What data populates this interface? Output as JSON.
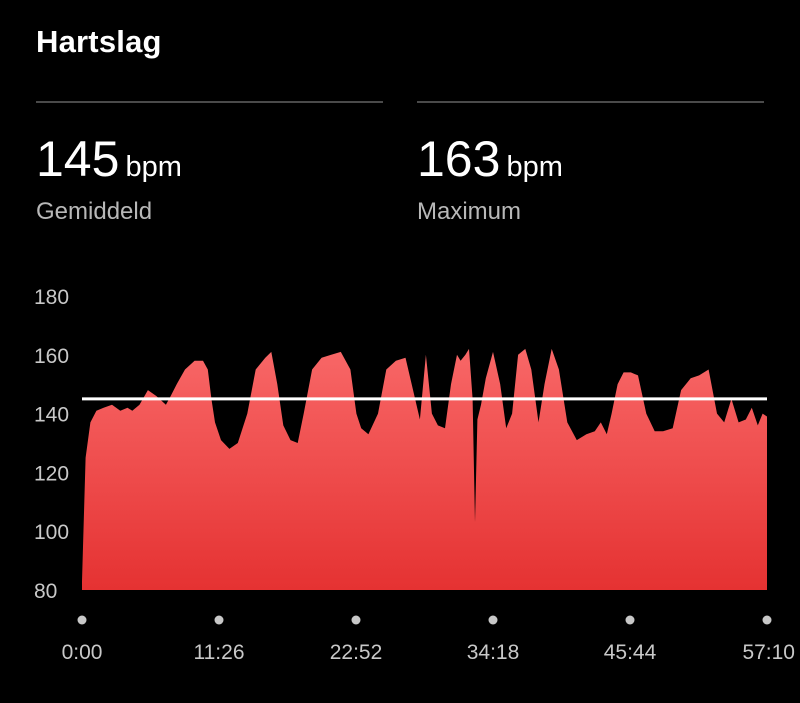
{
  "header": {
    "title": "Hartslag"
  },
  "stats": [
    {
      "value": "145",
      "unit": "bpm",
      "label": "Gemiddeld"
    },
    {
      "value": "163",
      "unit": "bpm",
      "label": "Maximum"
    }
  ],
  "colors": {
    "fill_top": "#f86767",
    "fill_bottom": "#e53232",
    "average_line": "#ffffff",
    "text_secondary": "#b8b8b8"
  },
  "chart_data": {
    "type": "area",
    "ylim": [
      80,
      180
    ],
    "y_ticks": [
      "180",
      "160",
      "140",
      "120",
      "100",
      "80"
    ],
    "x_range_minutes": [
      0,
      57.17
    ],
    "x_ticks": [
      "0:00",
      "11:26",
      "22:52",
      "34:18",
      "45:44",
      "57:10"
    ],
    "average_line": 145,
    "series": [
      {
        "x": [
          0,
          0.3,
          0.7,
          1.2,
          1.8,
          2.5,
          3.2,
          3.8,
          4.2,
          4.8,
          5.5,
          6.2,
          7.0,
          7.4,
          7.9,
          8.6,
          9.4,
          10.1,
          10.5,
          10.8,
          11.1,
          11.6,
          12.3,
          13.0,
          13.8,
          14.5,
          15.3,
          15.8,
          16.3,
          16.8,
          17.4,
          18.0,
          18.5,
          19.2,
          20.0,
          20.8,
          21.6,
          22.4,
          22.9,
          23.3,
          23.9,
          24.7,
          25.4,
          26.2,
          27.0,
          27.8,
          28.2,
          28.7,
          29.2,
          29.7,
          30.3,
          30.8,
          31.3,
          31.6,
          32.0,
          32.3,
          32.6,
          32.8,
          33.0,
          33.3,
          33.7,
          34.3,
          34.9,
          35.4,
          35.9,
          36.4,
          37.0,
          37.5,
          38.1,
          38.6,
          39.2,
          39.8,
          40.5,
          41.3,
          42.1,
          42.8,
          43.3,
          43.8,
          44.2,
          44.7,
          45.2,
          45.8,
          46.4,
          47.1,
          47.8,
          48.5,
          49.3,
          50.0,
          50.8,
          51.5,
          52.3,
          53.0,
          53.6,
          54.2,
          54.8,
          55.4,
          55.9,
          56.4,
          56.8,
          57.17
        ],
        "y": [
          83,
          125,
          137,
          141,
          142,
          143,
          141,
          142,
          141,
          143,
          148,
          146,
          143,
          146,
          150,
          155,
          158,
          158,
          155,
          145,
          137,
          131,
          128,
          130,
          140,
          155,
          159,
          161,
          150,
          136,
          131,
          130,
          140,
          155,
          159,
          160,
          161,
          155,
          140,
          135,
          133,
          140,
          155,
          158,
          159,
          145,
          138,
          160,
          140,
          136,
          135,
          150,
          160,
          158,
          160,
          162,
          145,
          103,
          138,
          143,
          152,
          161,
          150,
          135,
          140,
          160,
          162,
          155,
          137,
          150,
          162,
          155,
          137,
          131,
          133,
          134,
          137,
          133,
          140,
          150,
          154,
          154,
          153,
          140,
          134,
          134,
          135,
          148,
          152,
          153,
          155,
          140,
          137,
          145,
          137,
          138,
          142,
          136,
          140,
          139
        ]
      }
    ]
  }
}
